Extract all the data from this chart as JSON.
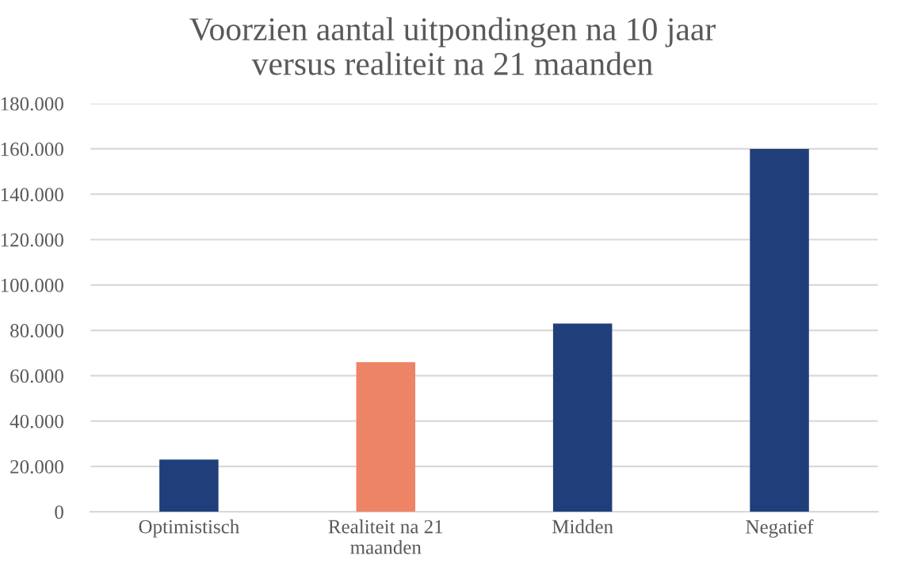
{
  "chart_data": {
    "type": "bar",
    "title": "Voorzien aantal uitpondingen na 10 jaar\nversus realiteit na 21 maanden",
    "categories": [
      "Optimistisch",
      "Realiteit na 21\nmaanden",
      "Midden",
      "Negatief"
    ],
    "values": [
      23000,
      66000,
      83000,
      160000
    ],
    "colors": [
      "#203f7a",
      "#ee8466",
      "#203f7a",
      "#203f7a"
    ],
    "ylim": [
      0,
      180000
    ],
    "yticks": [
      0,
      {
        "value": 20000,
        "label": "20.000"
      },
      {
        "value": 40000,
        "label": "40.000"
      },
      {
        "value": 60000,
        "label": "60.000"
      },
      {
        "value": 80000,
        "label": "80.000"
      },
      {
        "value": 100000,
        "label": "100.000"
      },
      {
        "value": 120000,
        "label": "120.000"
      },
      {
        "value": 140000,
        "label": "140.000"
      },
      {
        "value": 160000,
        "label": "160.000"
      },
      {
        "value": 180000,
        "label": "180.000"
      }
    ],
    "grid": "y"
  }
}
